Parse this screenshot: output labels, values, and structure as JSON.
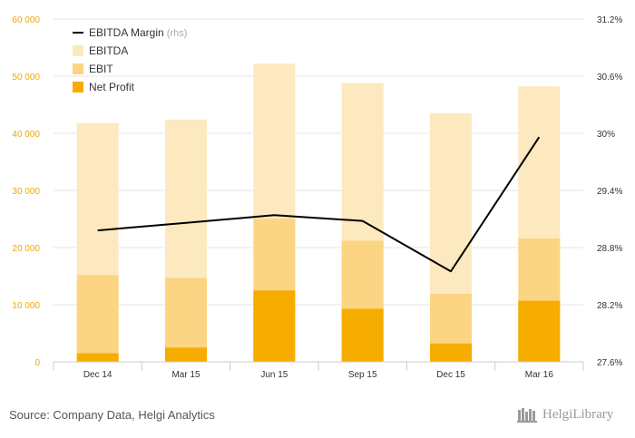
{
  "chart_data": {
    "type": "bar",
    "stacked_overlay": true,
    "categories": [
      "Dec 14",
      "Mar 15",
      "Jun 15",
      "Sep 15",
      "Dec 15",
      "Mar 16"
    ],
    "series": [
      {
        "name": "EBITDA",
        "kind": "bar",
        "axis": "left",
        "color": "#fde9bf",
        "values": [
          41800,
          42400,
          52200,
          48800,
          43500,
          48200
        ]
      },
      {
        "name": "EBIT",
        "kind": "bar",
        "axis": "left",
        "color": "#fbd584",
        "values": [
          15200,
          14700,
          25100,
          21200,
          11900,
          21600
        ]
      },
      {
        "name": "Net Profit",
        "kind": "bar",
        "axis": "left",
        "color": "#f7ac00",
        "values": [
          1500,
          2500,
          12500,
          9300,
          3200,
          10700
        ]
      },
      {
        "name": "EBITDA Margin",
        "kind": "line",
        "axis": "right",
        "color": "#000000",
        "values": [
          28.98,
          29.06,
          29.14,
          29.08,
          28.55,
          29.96
        ]
      }
    ],
    "y_left": {
      "min": 0,
      "max": 60000,
      "ticks": [
        "0",
        "10 000",
        "20 000",
        "30 000",
        "40 000",
        "50 000",
        "60 000"
      ]
    },
    "y_right": {
      "min": 27.6,
      "max": 31.2,
      "ticks": [
        "27.6%",
        "28.2%",
        "28.8%",
        "29.4%",
        "30%",
        "30.6%",
        "31.2%"
      ]
    },
    "legend": {
      "position": "top-left",
      "items": [
        {
          "label": "EBITDA Margin",
          "suffix": "(rhs)",
          "type": "line",
          "color": "#000000"
        },
        {
          "label": "EBITDA",
          "type": "box",
          "color": "#fde9bf"
        },
        {
          "label": "EBIT",
          "type": "box",
          "color": "#fbd584"
        },
        {
          "label": "Net Profit",
          "type": "box",
          "color": "#f7ac00"
        }
      ]
    },
    "grid": "horizontal"
  },
  "footer": {
    "source": "Source: Company Data, Helgi Analytics",
    "brand": "HelgiLibrary"
  }
}
